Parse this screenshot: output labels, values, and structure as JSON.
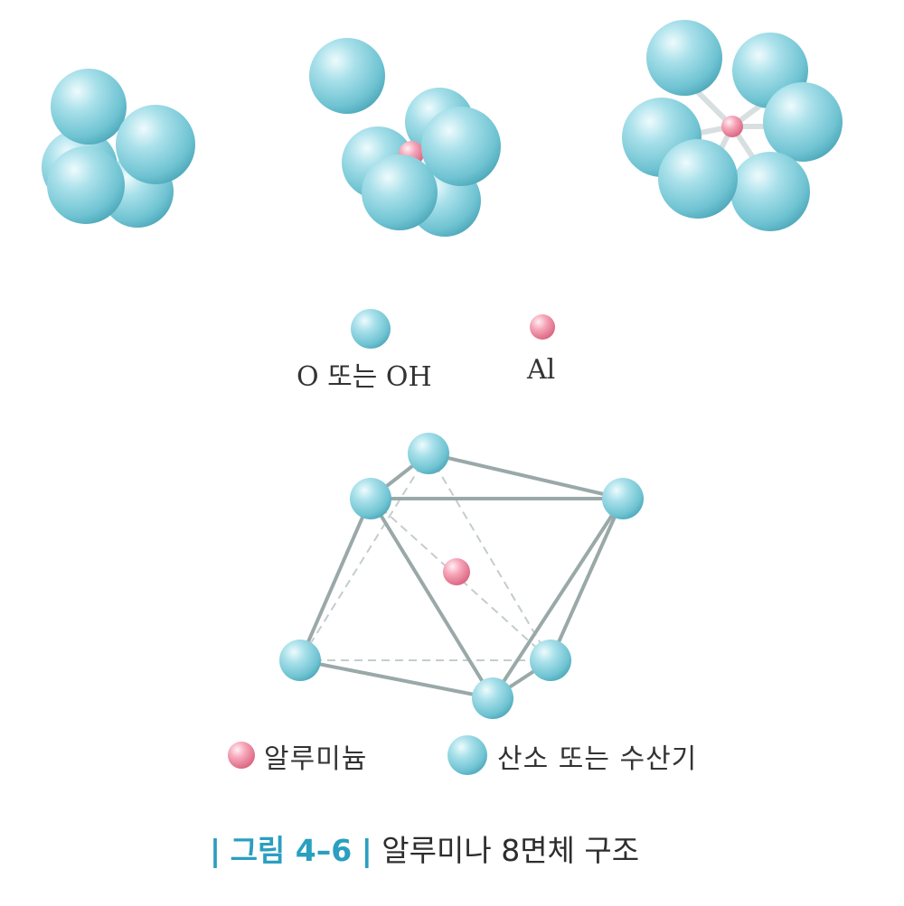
{
  "legend_top": {
    "oxygen_label": "O 또는 OH",
    "aluminum_label": "Al"
  },
  "legend_bottom": {
    "aluminum_label": "알루미늄",
    "oxygen_label": "산소 또는 수산기"
  },
  "caption": {
    "bar_left": "|",
    "figure_number": "그림 4–6",
    "bar_right": "|",
    "title": "알루미나 8면체 구조"
  },
  "colors": {
    "oxygen_sphere": "#7fcfdc",
    "aluminum_sphere": "#f08aa3",
    "bond": "#9aa8a8",
    "caption_accent": "#2a9fc0"
  }
}
